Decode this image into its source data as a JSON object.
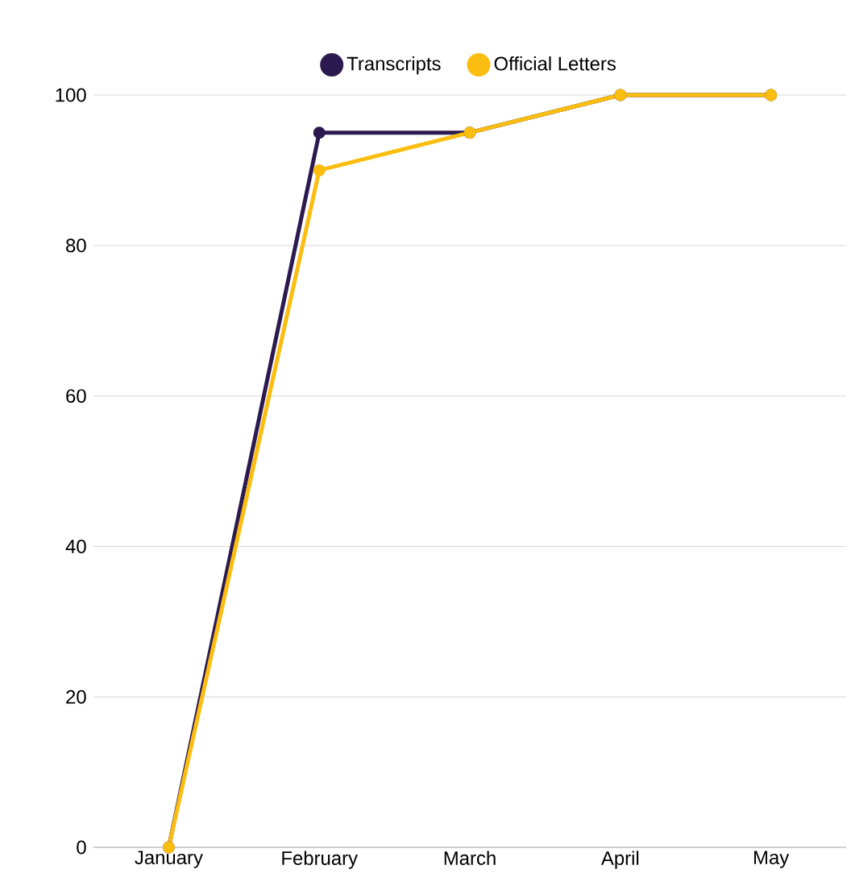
{
  "chart_data": {
    "type": "line",
    "categories": [
      "January",
      "February",
      "March",
      "April",
      "May"
    ],
    "series": [
      {
        "name": "Transcripts",
        "color": "#2b1a4f",
        "values": [
          0,
          95,
          95,
          100,
          100
        ]
      },
      {
        "name": "Official Letters",
        "color": "#fbbd10",
        "values": [
          0,
          90,
          95,
          100,
          100
        ]
      }
    ],
    "ylim": [
      0,
      100
    ],
    "yticks": [
      0,
      20,
      40,
      60,
      80,
      100
    ],
    "grid": "y",
    "legend": "top",
    "marker": "circle",
    "line_style": "solid"
  }
}
